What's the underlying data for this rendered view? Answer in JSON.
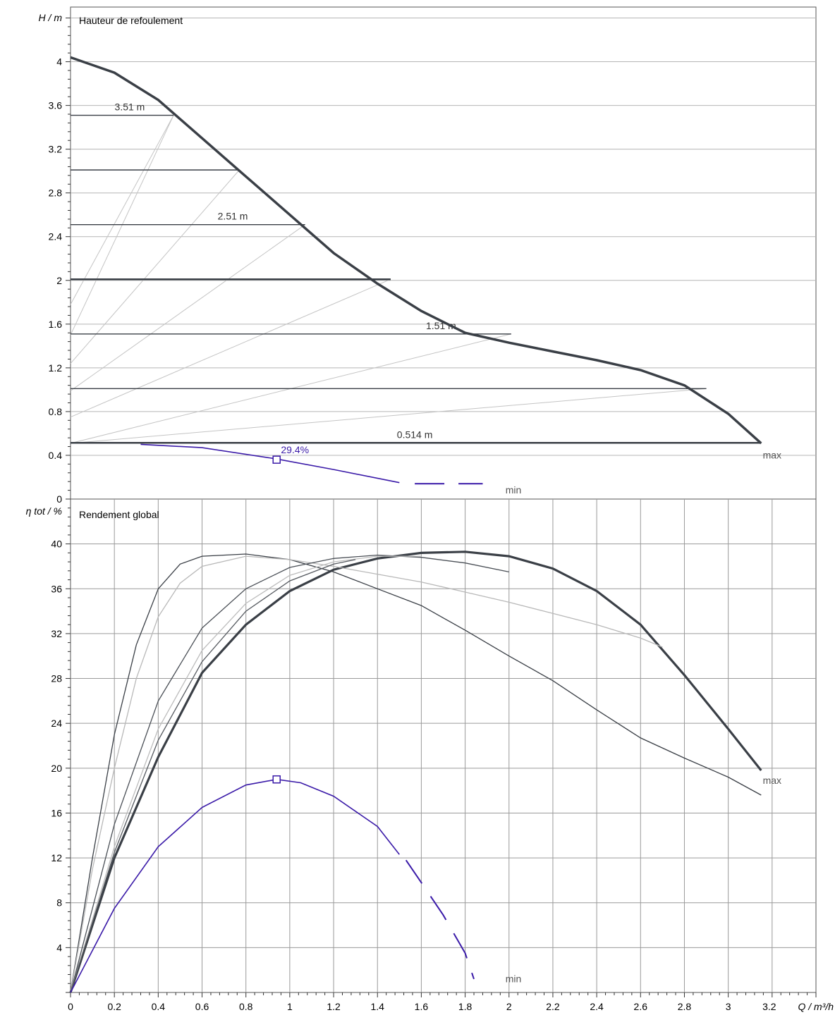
{
  "chart_data": [
    {
      "type": "line",
      "title": "Hauteur de refoulement",
      "ylabel": "H / m",
      "xlabel": "Q / m³/h",
      "xlim": [
        0,
        3.4
      ],
      "ylim": [
        0,
        4.5
      ],
      "yticks": [
        0,
        0.4,
        0.8,
        1.2,
        1.6,
        2,
        2.4,
        2.8,
        3.2,
        3.6,
        4
      ],
      "grid": true,
      "series": [
        {
          "role": "max",
          "values_xy": [
            [
              0,
              4.04
            ],
            [
              0.2,
              3.9
            ],
            [
              0.4,
              3.65
            ],
            [
              0.6,
              3.3
            ],
            [
              0.8,
              2.95
            ],
            [
              1.0,
              2.6
            ],
            [
              1.2,
              2.25
            ],
            [
              1.4,
              1.97
            ],
            [
              1.6,
              1.72
            ],
            [
              1.8,
              1.52
            ],
            [
              2.0,
              1.43
            ],
            [
              2.2,
              1.35
            ],
            [
              2.4,
              1.27
            ],
            [
              2.6,
              1.18
            ],
            [
              2.8,
              1.04
            ],
            [
              3.0,
              0.78
            ],
            [
              3.15,
              0.51
            ]
          ]
        },
        {
          "role": "min",
          "values_xy": [
            [
              0.32,
              0.5
            ],
            [
              0.6,
              0.47
            ],
            [
              0.93,
              0.37
            ],
            [
              1.2,
              0.27
            ],
            [
              1.5,
              0.15
            ]
          ]
        },
        {
          "role": "min-extension",
          "values_xy": [
            [
              1.57,
              0.14
            ],
            [
              1.88,
              0.14
            ]
          ]
        }
      ],
      "setpoint_lines": [
        {
          "h": 3.51,
          "q_end": 0.47,
          "label": "3.51 m"
        },
        {
          "h": 3.01,
          "q_end": 0.77
        },
        {
          "h": 2.51,
          "q_end": 1.07,
          "label": "2.51 m"
        },
        {
          "h": 2.01,
          "q_end": 1.46
        },
        {
          "h": 1.51,
          "q_end": 2.01,
          "label": "1.51 m"
        },
        {
          "h": 1.01,
          "q_end": 2.9
        },
        {
          "h": 0.514,
          "q_end": 3.15,
          "label": "0.514 m"
        }
      ],
      "system_curves": [
        {
          "y0": 1.78,
          "q": 0.47,
          "h": 3.51
        },
        {
          "y0": 1.5,
          "q": 0.47,
          "h": 3.51
        },
        {
          "y0": 1.24,
          "q": 0.77,
          "h": 3.01
        },
        {
          "y0": 0.99,
          "q": 1.07,
          "h": 2.51
        },
        {
          "y0": 0.75,
          "q": 1.46,
          "h": 2.01
        },
        {
          "y0": 0.51,
          "q": 2.01,
          "h": 1.51
        },
        {
          "y0": 0.51,
          "q": 2.9,
          "h": 1.01
        }
      ],
      "operating_point": {
        "q": 0.94,
        "h": 0.36,
        "label": "29.4%"
      },
      "end_labels": {
        "max": "max",
        "min": "min"
      }
    },
    {
      "type": "line",
      "title": "Rendement global",
      "ylabel": "η tot / %",
      "xlabel": "Q / m³/h",
      "xlim": [
        0,
        3.4
      ],
      "ylim": [
        0,
        44
      ],
      "xticks": [
        0,
        0.2,
        0.4,
        0.6,
        0.8,
        1,
        1.2,
        1.4,
        1.6,
        1.8,
        2,
        2.2,
        2.4,
        2.6,
        2.8,
        3,
        3.2
      ],
      "yticks": [
        0,
        4,
        8,
        12,
        16,
        20,
        24,
        28,
        32,
        36,
        40
      ],
      "grid": true,
      "series": [
        {
          "role": "max",
          "values_xy": [
            [
              0,
              0
            ],
            [
              0.2,
              12
            ],
            [
              0.4,
              21
            ],
            [
              0.6,
              28.5
            ],
            [
              0.8,
              32.8
            ],
            [
              1.0,
              35.8
            ],
            [
              1.2,
              37.7
            ],
            [
              1.4,
              38.7
            ],
            [
              1.6,
              39.2
            ],
            [
              1.8,
              39.3
            ],
            [
              2.0,
              38.9
            ],
            [
              2.2,
              37.8
            ],
            [
              2.4,
              35.8
            ],
            [
              2.6,
              32.8
            ],
            [
              2.8,
              28.3
            ],
            [
              3.0,
              23.5
            ],
            [
              3.15,
              19.8
            ]
          ]
        },
        {
          "role": "curve",
          "values_xy": [
            [
              0,
              0
            ],
            [
              0.1,
              12
            ],
            [
              0.2,
              23
            ],
            [
              0.3,
              31
            ],
            [
              0.4,
              36
            ],
            [
              0.5,
              38.2
            ],
            [
              0.6,
              38.9
            ],
            [
              0.8,
              39.1
            ],
            [
              1.0,
              38.6
            ],
            [
              1.2,
              37.5
            ],
            [
              1.4,
              36
            ],
            [
              1.6,
              34.5
            ],
            [
              1.8,
              32.3
            ],
            [
              2.0,
              30
            ],
            [
              2.2,
              27.8
            ],
            [
              2.4,
              25.2
            ],
            [
              2.6,
              22.7
            ],
            [
              2.8,
              20.9
            ],
            [
              3.0,
              19.2
            ],
            [
              3.15,
              17.6
            ]
          ]
        },
        {
          "role": "curve",
          "values_xy": [
            [
              0,
              0
            ],
            [
              0.1,
              11
            ],
            [
              0.2,
              20
            ],
            [
              0.3,
              28
            ],
            [
              0.4,
              33.5
            ],
            [
              0.5,
              36.5
            ],
            [
              0.6,
              38
            ],
            [
              0.8,
              38.9
            ],
            [
              1.0,
              38.6
            ],
            [
              1.2,
              38
            ],
            [
              1.4,
              37.3
            ],
            [
              1.6,
              36.6
            ],
            [
              1.8,
              35.7
            ],
            [
              2.0,
              34.8
            ],
            [
              2.2,
              33.8
            ],
            [
              2.4,
              32.8
            ],
            [
              2.6,
              31.6
            ],
            [
              2.7,
              30.8
            ]
          ]
        },
        {
          "role": "curve",
          "values_xy": [
            [
              0,
              0
            ],
            [
              0.2,
              15
            ],
            [
              0.4,
              26
            ],
            [
              0.6,
              32.5
            ],
            [
              0.8,
              36
            ],
            [
              1.0,
              37.9
            ],
            [
              1.2,
              38.7
            ],
            [
              1.4,
              39.0
            ],
            [
              1.6,
              38.8
            ],
            [
              1.8,
              38.3
            ],
            [
              2.0,
              37.5
            ]
          ]
        },
        {
          "role": "curve",
          "values_xy": [
            [
              0,
              0
            ],
            [
              0.2,
              13
            ],
            [
              0.4,
              23.5
            ],
            [
              0.6,
              30.5
            ],
            [
              0.8,
              34.7
            ],
            [
              1.0,
              37.2
            ],
            [
              1.2,
              38.4
            ],
            [
              1.4,
              38.9
            ],
            [
              1.6,
              38.9
            ]
          ]
        },
        {
          "role": "curve",
          "values_xy": [
            [
              0,
              0
            ],
            [
              0.2,
              12.5
            ],
            [
              0.4,
              22.5
            ],
            [
              0.6,
              29.5
            ],
            [
              0.8,
              34
            ],
            [
              1.0,
              36.7
            ],
            [
              1.2,
              38.2
            ],
            [
              1.3,
              38.6
            ]
          ]
        },
        {
          "role": "min",
          "values_xy": [
            [
              0,
              0
            ],
            [
              0.2,
              7.5
            ],
            [
              0.4,
              13
            ],
            [
              0.6,
              16.5
            ],
            [
              0.8,
              18.5
            ],
            [
              0.94,
              19.0
            ],
            [
              1.05,
              18.7
            ],
            [
              1.2,
              17.5
            ],
            [
              1.4,
              14.8
            ],
            [
              1.5,
              12.3
            ]
          ]
        },
        {
          "role": "min-extension",
          "values_xy": [
            [
              1.53,
              11.8
            ],
            [
              1.6,
              9.8
            ],
            [
              1.7,
              6.9
            ],
            [
              1.8,
              3.5
            ],
            [
              1.84,
              1.2
            ]
          ]
        }
      ],
      "operating_point": {
        "q": 0.94,
        "eta": 19.0
      },
      "end_labels": {
        "max": "max",
        "min": "min"
      }
    }
  ]
}
